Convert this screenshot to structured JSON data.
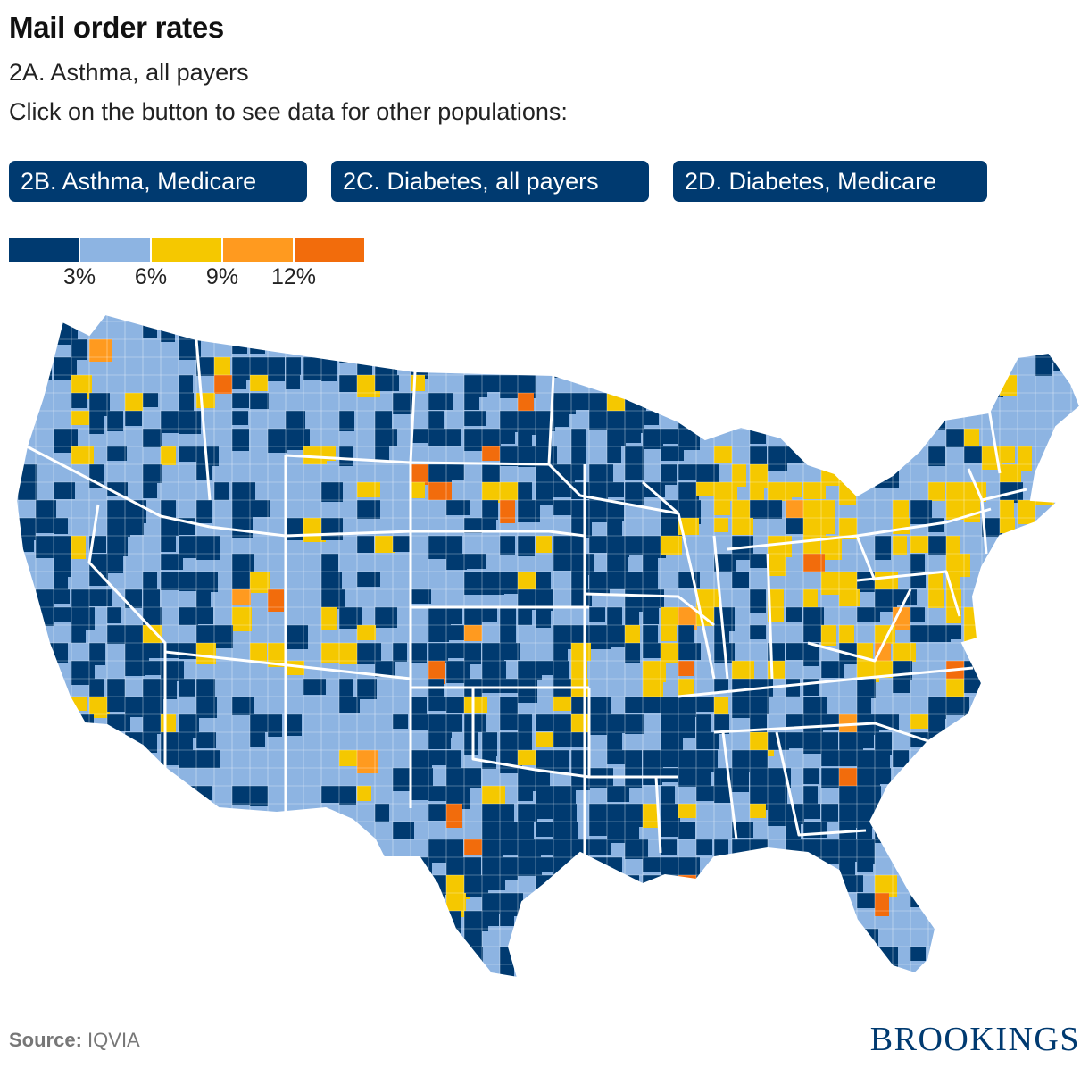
{
  "title": "Mail order rates",
  "subtitle": "2A. Asthma, all payers",
  "instruction": "Click on the button to see data for other populations:",
  "buttons": [
    {
      "label": "2B. Asthma, Medicare"
    },
    {
      "label": "2C. Diabetes, all payers"
    },
    {
      "label": "2D. Diabetes, Medicare"
    }
  ],
  "legend": {
    "colors": [
      "#003a70",
      "#8db4e2",
      "#f5c800",
      "#ff9a1f",
      "#f26c0c"
    ],
    "ticks": [
      "3%",
      "6%",
      "9%",
      "12%"
    ],
    "tick_values": [
      3,
      6,
      9,
      12
    ]
  },
  "map": {
    "region": "Contiguous United States",
    "geography": "county",
    "boundary_color": "#ffffff"
  },
  "source": {
    "label": "Source:",
    "value": "IQVIA"
  },
  "brand": "BROOKINGS"
}
